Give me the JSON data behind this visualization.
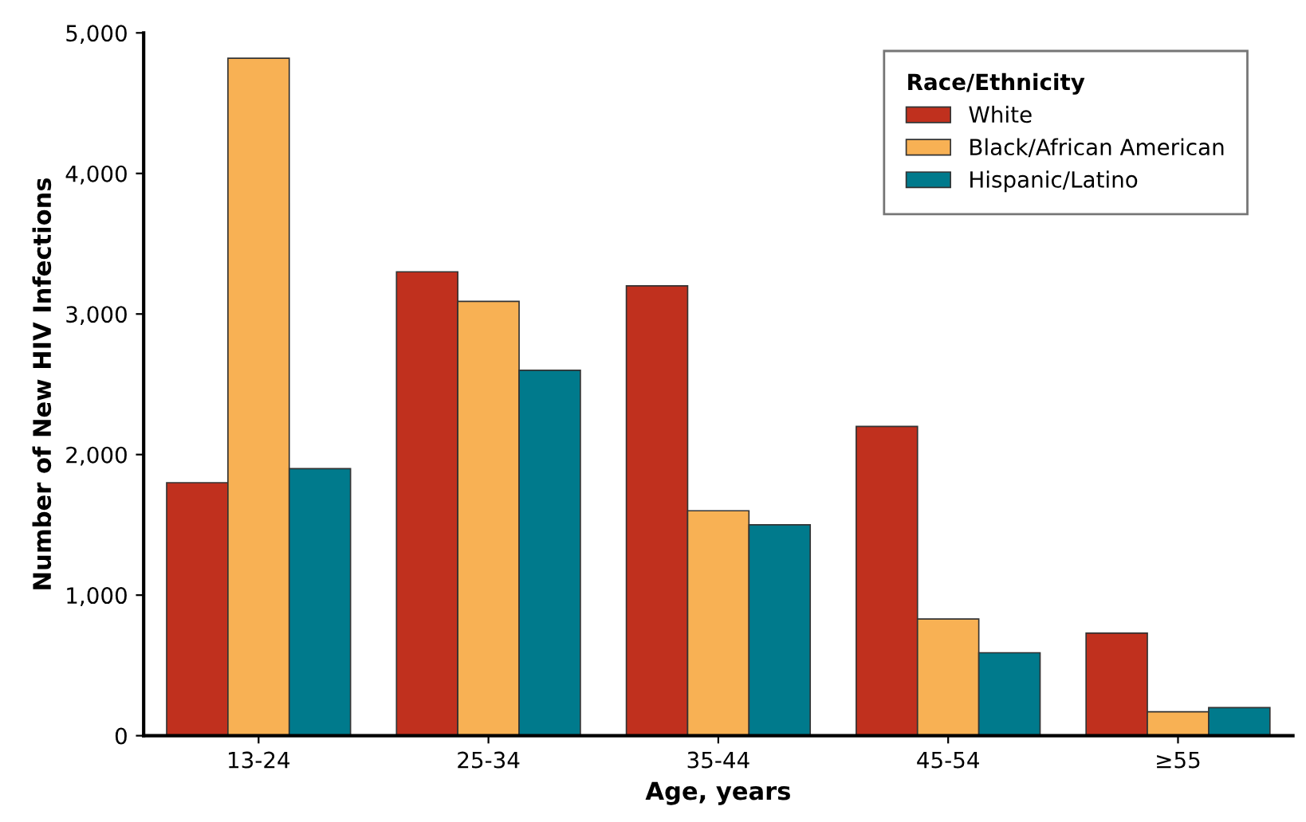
{
  "chart_data": {
    "type": "bar",
    "xlabel": "Age, years",
    "ylabel": "Number of New HIV Infections",
    "legend_title": "Race/Ethnicity",
    "categories": [
      "13-24",
      "25-34",
      "35-44",
      "45-54",
      "≥55"
    ],
    "series": [
      {
        "name": "White",
        "color": "#c0301e",
        "values": [
          1800,
          3300,
          3200,
          2200,
          730
        ]
      },
      {
        "name": "Black/African American",
        "color": "#f8b154",
        "values": [
          4820,
          3090,
          1600,
          830,
          170
        ]
      },
      {
        "name": "Hispanic/Latino",
        "color": "#007a8c",
        "values": [
          1900,
          2600,
          1500,
          590,
          200
        ]
      }
    ],
    "ylim": [
      0,
      5000
    ],
    "yticks": [
      {
        "value": 0,
        "label": "0"
      },
      {
        "value": 1000,
        "label": "1,000"
      },
      {
        "value": 2000,
        "label": "2,000"
      },
      {
        "value": 3000,
        "label": "3,000"
      },
      {
        "value": 4000,
        "label": "4,000"
      },
      {
        "value": 5000,
        "label": "5,000"
      }
    ],
    "grid": false,
    "legend": "top right"
  }
}
